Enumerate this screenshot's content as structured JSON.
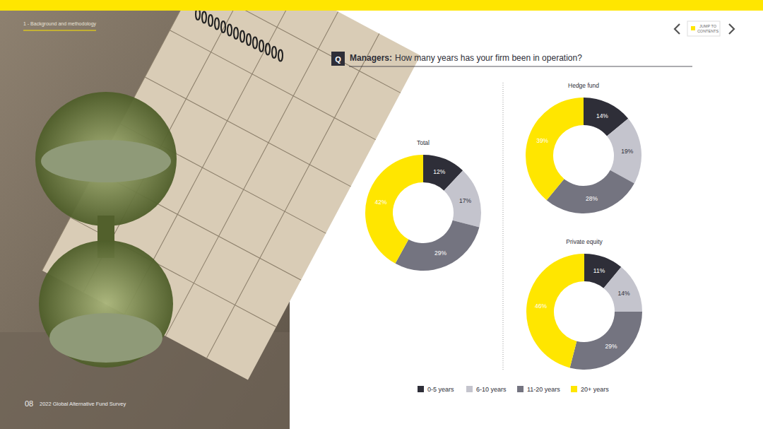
{
  "page": {
    "section_label": "1 - Background and methodology",
    "page_number": "08",
    "publication": "2022 Global Alternative Fund Survey",
    "nav_label_lines": [
      "JUMP TO",
      "CONTENTS"
    ],
    "question_marker": "Q",
    "respondent": "Managers:",
    "question": "How many years has your firm been in operation?"
  },
  "chart_data": [
    {
      "type": "donut",
      "title": "Total",
      "categories": [
        "0-5 years",
        "6-10 years",
        "11-20 years",
        "20+ years"
      ],
      "values": [
        12,
        17,
        29,
        42
      ],
      "value_labels": [
        "12%",
        "17%",
        "29%",
        "42%"
      ],
      "colors": [
        "#2e2e38",
        "#c4c4cd",
        "#747480",
        "#ffe600"
      ],
      "data_labels": true,
      "legend": "bottom"
    },
    {
      "type": "donut",
      "title": "Hedge fund",
      "categories": [
        "0-5 years",
        "6-10 years",
        "11-20 years",
        "20+ years"
      ],
      "values": [
        14,
        19,
        28,
        39
      ],
      "value_labels": [
        "14%",
        "19%",
        "28%",
        "39%"
      ],
      "colors": [
        "#2e2e38",
        "#c4c4cd",
        "#747480",
        "#ffe600"
      ],
      "data_labels": true
    },
    {
      "type": "donut",
      "title": "Private equity",
      "categories": [
        "0-5 years",
        "6-10 years",
        "11-20 years",
        "20+ years"
      ],
      "values": [
        11,
        14,
        29,
        46
      ],
      "value_labels": [
        "11%",
        "14%",
        "29%",
        "46%"
      ],
      "colors": [
        "#2e2e38",
        "#c4c4cd",
        "#747480",
        "#ffe600"
      ],
      "data_labels": true
    }
  ]
}
